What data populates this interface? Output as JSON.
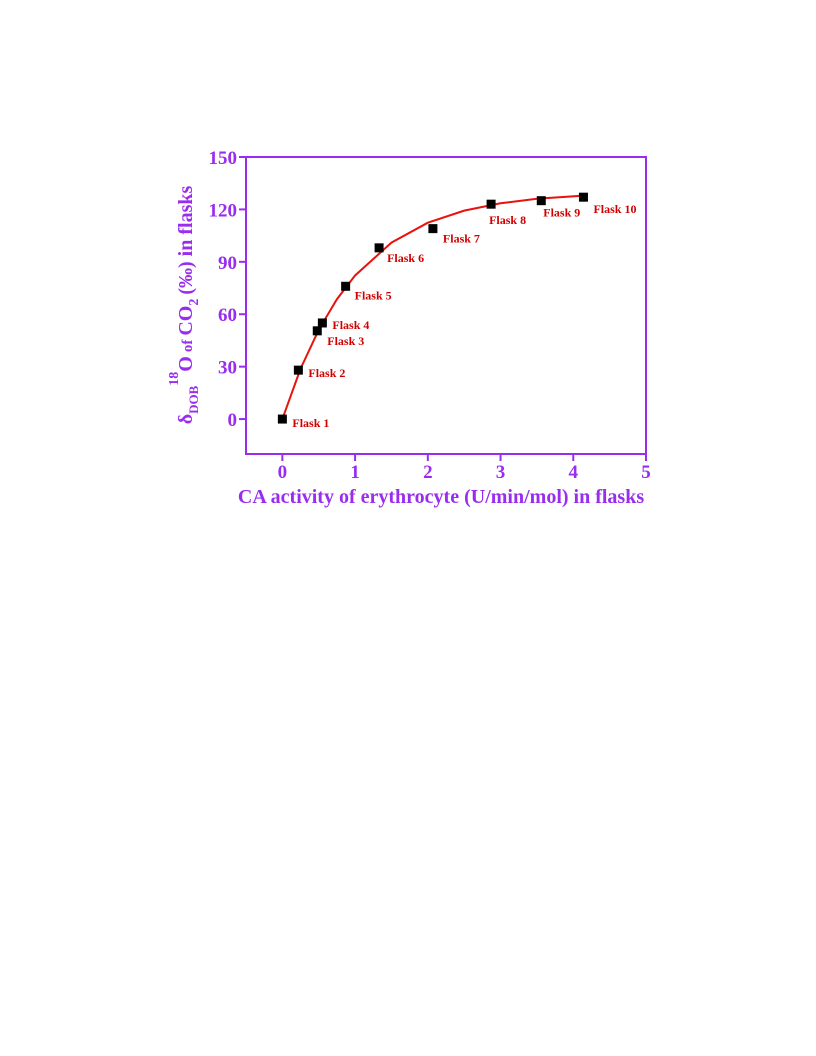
{
  "chart_data": {
    "type": "scatter",
    "x_label": "CA activity of erythrocyte (U/min/mol) in flasks",
    "y_label": {
      "symbol": "δ",
      "symbol_sub": "DOB",
      "sup": "18",
      "main": "O",
      "of": "of",
      "co": "CO",
      "sub": "2",
      "rest": "(‰) in flasks"
    },
    "x": [
      0,
      0.22,
      0.48,
      0.55,
      0.87,
      1.33,
      2.07,
      2.87,
      3.56,
      4.14
    ],
    "values": [
      0,
      28,
      50.5,
      55,
      76,
      98,
      109,
      123,
      125,
      127
    ],
    "point_labels": [
      "Flask 1",
      "Flask 2",
      "Flask 3",
      "Flask 4",
      "Flask 5",
      "Flask 6",
      "Flask 7",
      "Flask 8",
      "Flask 9",
      "Flask 10"
    ],
    "color": "#000000",
    "label_color": "#d10000",
    "fit": {
      "x": [
        0,
        0.25,
        0.5,
        0.75,
        1,
        1.5,
        2,
        2.5,
        3,
        3.5,
        4.14
      ],
      "values": [
        0,
        28.8,
        51.1,
        68.6,
        82.2,
        101.0,
        112.4,
        119.3,
        123.5,
        126.1,
        127.9
      ],
      "color": "#e8120c"
    },
    "axis_color": "#9a2cf0",
    "xlim": [
      -0.5,
      5
    ],
    "xticks": [
      0,
      1,
      2,
      3,
      4,
      5
    ],
    "ylim": [
      -20,
      150
    ],
    "yticks": [
      0,
      30,
      60,
      90,
      120,
      150
    ]
  }
}
